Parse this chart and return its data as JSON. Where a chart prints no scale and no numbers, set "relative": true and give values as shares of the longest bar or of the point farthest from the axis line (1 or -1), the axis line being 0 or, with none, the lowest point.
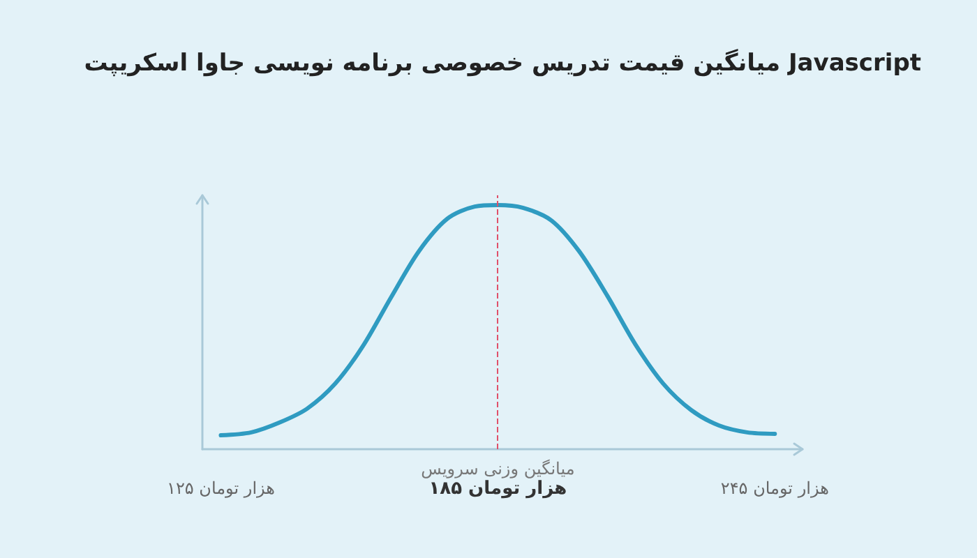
{
  "chart_data": {
    "type": "line",
    "title": "میانگین قیمت تدریس خصوصی برنامه نویسی جاوا اسکریپت Javascript",
    "relative": true,
    "x": [
      125,
      131.6,
      137.7,
      143.7,
      149.8,
      155.8,
      161.9,
      167.9,
      174,
      180,
      185,
      190.4,
      196.6,
      202.6,
      208.7,
      214.8,
      220.8,
      226.9,
      232.9,
      239,
      245
    ],
    "series": [
      {
        "color": "#2f9bc1",
        "values": [
          0.057,
          0.069,
          0.109,
          0.166,
          0.269,
          0.423,
          0.623,
          0.811,
          0.943,
          0.994,
          1,
          0.989,
          0.937,
          0.811,
          0.629,
          0.429,
          0.269,
          0.16,
          0.097,
          0.069,
          0.063
        ]
      }
    ],
    "xlim": [
      121,
      251
    ],
    "xticks": [
      {
        "value": 125,
        "label": "۱۲۵ هزار تومان"
      },
      {
        "value": 185,
        "label": "۱۸۵ هزار تومان"
      },
      {
        "value": 245,
        "label": "۲۴۵ هزار تومان"
      }
    ],
    "ref_lines": [
      {
        "axis": "x",
        "value": 185,
        "label": "میانگین وزنی سرویس",
        "color": "#e0506a",
        "line_style": "dashed"
      }
    ],
    "grid": false,
    "marker": "none",
    "line_style": "solid"
  }
}
